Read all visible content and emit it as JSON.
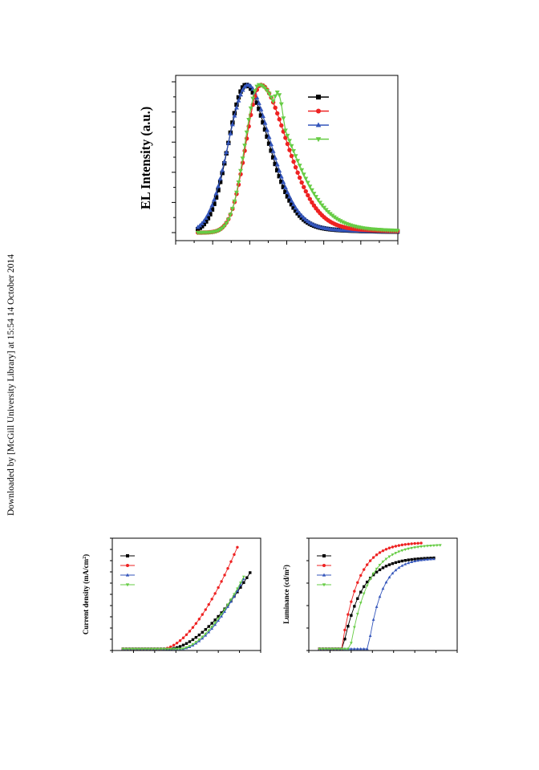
{
  "download_note": "Downloaded by [McGill University Library] at 15:54 14 October 2014",
  "colors": {
    "black": "#000000",
    "red": "#ee2222",
    "blue": "#3355bb",
    "green": "#66cc44"
  },
  "chart_data": [
    {
      "type": "line",
      "ylabel": "EL Intensity (a.u.)",
      "xlim": [
        0,
        12
      ],
      "ylim": [
        0,
        1.05
      ],
      "legend": "top-right",
      "series": [
        {
          "color": "#000000",
          "marker": "square",
          "peak": 3.8,
          "sl": 0.95,
          "sr": 1.35,
          "shoulder": 0.0
        },
        {
          "color": "#ee2222",
          "marker": "circle",
          "peak": 4.6,
          "sl": 0.8,
          "sr": 1.55,
          "shoulder": 0.55
        },
        {
          "color": "#3355bb",
          "marker": "triangle-up",
          "peak": 3.9,
          "sl": 1.05,
          "sr": 1.35,
          "shoulder": 0.0
        },
        {
          "color": "#66cc44",
          "marker": "triangle-down",
          "peak": 4.5,
          "sl": 0.75,
          "sr": 1.85,
          "shoulder": 0.95
        }
      ]
    },
    {
      "type": "line",
      "ylabel": "Current density (mA/cm2)",
      "xlim": [
        0,
        14
      ],
      "ylim": [
        0,
        1
      ],
      "legend": "top-left",
      "series": [
        {
          "color": "#000000",
          "marker": "square",
          "onset": 5.4,
          "end": 13.0,
          "top": 0.72
        },
        {
          "color": "#ee2222",
          "marker": "circle",
          "onset": 4.8,
          "end": 11.8,
          "top": 0.96
        },
        {
          "color": "#3355bb",
          "marker": "triangle-up",
          "onset": 6.6,
          "end": 12.6,
          "top": 0.7
        },
        {
          "color": "#66cc44",
          "marker": "triangle-down",
          "onset": 6.4,
          "end": 12.6,
          "top": 0.72
        }
      ]
    },
    {
      "type": "line",
      "ylabel": "Luminance (cd/m2)",
      "xlim": [
        0,
        14
      ],
      "ylim": [
        0,
        1
      ],
      "yscale": "log",
      "legend": "top-left",
      "series": [
        {
          "color": "#000000",
          "marker": "square",
          "onset": 3.2,
          "end": 12.0,
          "top": 0.86
        },
        {
          "color": "#ee2222",
          "marker": "circle",
          "onset": 3.1,
          "end": 10.8,
          "top": 1.0
        },
        {
          "color": "#3355bb",
          "marker": "triangle-up",
          "onset": 5.6,
          "end": 12.0,
          "top": 0.85
        },
        {
          "color": "#66cc44",
          "marker": "triangle-down",
          "onset": 3.9,
          "end": 12.5,
          "top": 0.98
        }
      ]
    }
  ]
}
